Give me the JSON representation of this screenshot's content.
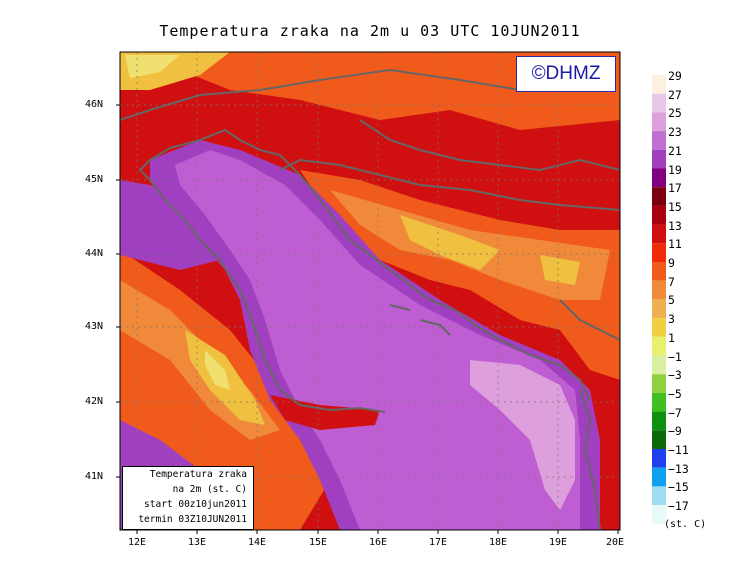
{
  "title": "Temperatura zraka na 2m u 03 UTC 10JUN2011",
  "logo": "©DHMZ",
  "info_box": {
    "line1": "Temperatura zraka",
    "line2": "na 2m (st. C)",
    "line3": "start 00z10jun2011",
    "line4": "termin 03Z10JUN2011"
  },
  "lat_labels": [
    "46N",
    "45N",
    "44N",
    "43N",
    "42N",
    "41N"
  ],
  "lon_labels": [
    "12E",
    "13E",
    "14E",
    "15E",
    "16E",
    "17E",
    "18E",
    "19E",
    "20E"
  ],
  "colorbar": {
    "labels": [
      "29",
      "27",
      "25",
      "23",
      "21",
      "19",
      "17",
      "15",
      "13",
      "11",
      "9",
      "7",
      "5",
      "3",
      "1",
      "−1",
      "−3",
      "−5",
      "−7",
      "−9",
      "−11",
      "−13",
      "−15",
      "−17"
    ],
    "units": "(st. C)",
    "colors": [
      "#fdf0e0",
      "#e8c8e8",
      "#dda0dd",
      "#c070d0",
      "#a040c0",
      "#800080",
      "#7a0010",
      "#a80010",
      "#d01010",
      "#f02a0a",
      "#f05a1a",
      "#f08a3a",
      "#f0b050",
      "#f0d040",
      "#e8f070",
      "#d8f0a0",
      "#90d040",
      "#40c020",
      "#109010",
      "#0a6a0a",
      "#2040f0",
      "#10a0f0",
      "#a0dcf0",
      "#e8faf8"
    ]
  },
  "map_colors": {
    "sea_pale": "#dda0dd",
    "sea": "#bf5ed3",
    "sea_deep": "#a040c0",
    "land_hot": "#d01010",
    "land_warm": "#f05a1a",
    "land_mild": "#f08a3a",
    "land_cool": "#f0c040",
    "land_cold": "#f0e070",
    "coast": "#666666"
  }
}
